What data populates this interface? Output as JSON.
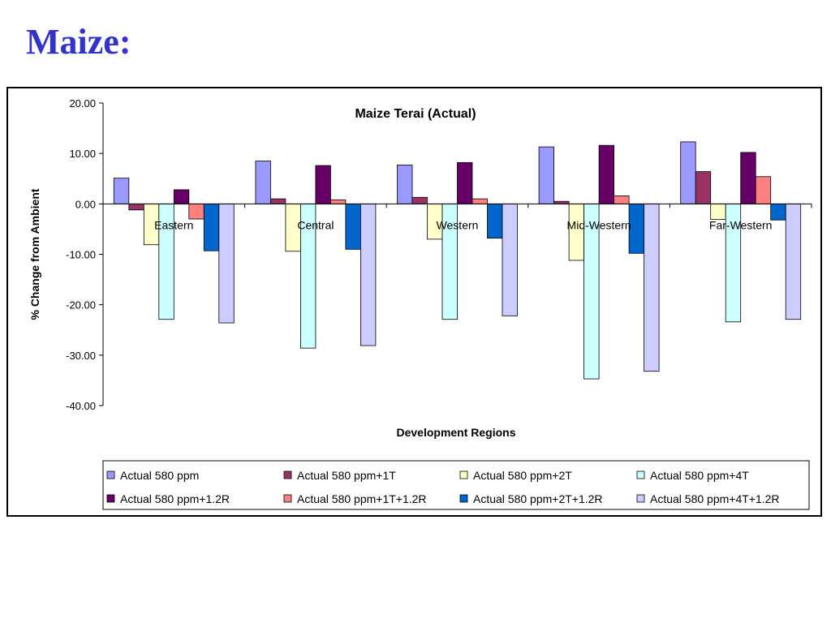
{
  "slide": {
    "title": "Maize:"
  },
  "chart_data": {
    "type": "bar",
    "title": "Maize Terai (Actual)",
    "xlabel": "Development Regions",
    "ylabel": "% Change from Ambient",
    "ylim": [
      -40,
      20
    ],
    "yticks": [
      20,
      10,
      0,
      -10,
      -20,
      -30,
      -40
    ],
    "ytick_labels": [
      "20.00",
      "10.00",
      "0.00",
      "-10.00",
      "-20.00",
      "-30.00",
      "-40.00"
    ],
    "categories": [
      "Eastern",
      "Central",
      "Western",
      "Mid-Western",
      "Far-Western"
    ],
    "legend_position": "bottom",
    "series": [
      {
        "name": "Actual 580 ppm",
        "color": "#9999ff",
        "values": [
          5.1,
          8.5,
          7.7,
          11.3,
          12.3
        ]
      },
      {
        "name": "Actual 580 ppm+1T",
        "color": "#993366",
        "values": [
          -1.2,
          1.0,
          1.3,
          0.5,
          6.4
        ]
      },
      {
        "name": "Actual 580 ppm+2T",
        "color": "#ffffcc",
        "values": [
          -8.1,
          -9.4,
          -7.0,
          -11.2,
          -3.1
        ]
      },
      {
        "name": "Actual 580 ppm+4T",
        "color": "#ccffff",
        "values": [
          -22.9,
          -28.6,
          -22.9,
          -34.7,
          -23.4
        ]
      },
      {
        "name": "Actual 580 ppm+1.2R",
        "color": "#660066",
        "values": [
          2.8,
          7.6,
          8.2,
          11.6,
          10.2
        ]
      },
      {
        "name": "Actual 580 ppm+1T+1.2R",
        "color": "#ff8080",
        "values": [
          -3.0,
          0.8,
          1.0,
          1.6,
          5.4
        ]
      },
      {
        "name": "Actual 580 ppm+2T+1.2R",
        "color": "#0066cc",
        "values": [
          -9.3,
          -9.0,
          -6.8,
          -9.8,
          -3.2
        ]
      },
      {
        "name": "Actual 580 ppm+4T+1.2R",
        "color": "#ccccff",
        "values": [
          -23.6,
          -28.1,
          -22.2,
          -33.2,
          -22.9
        ]
      }
    ]
  }
}
